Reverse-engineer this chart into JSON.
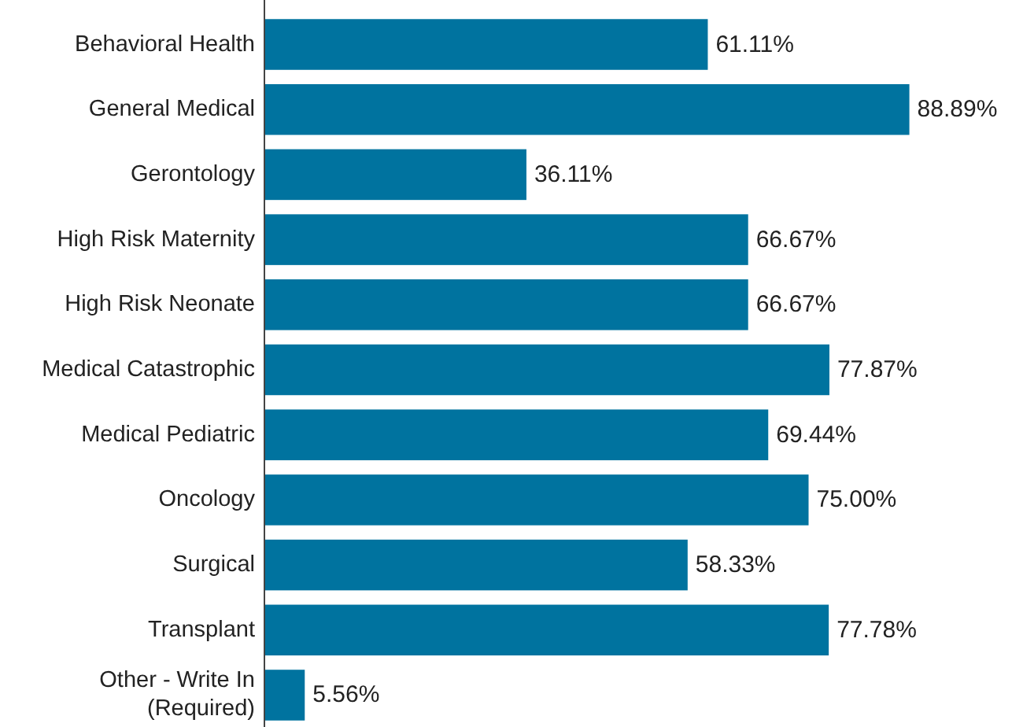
{
  "chart_data": {
    "type": "bar",
    "orientation": "horizontal",
    "categories": [
      "Behavioral Health",
      "General Medical",
      "Gerontology",
      "High Risk Maternity",
      "High Risk Neonate",
      "Medical Catastrophic",
      "Medical Pediatric",
      "Oncology",
      "Surgical",
      "Transplant",
      "Other - Write In (Required)"
    ],
    "values": [
      61.11,
      88.89,
      36.11,
      66.67,
      66.67,
      77.87,
      69.44,
      75.0,
      58.33,
      77.78,
      5.56
    ],
    "value_labels": [
      "61.11%",
      "88.89%",
      "36.11%",
      "66.67%",
      "66.67%",
      "77.87%",
      "69.44%",
      "75.00%",
      "58.33%",
      "77.78%",
      "5.56%"
    ],
    "color": "#00739f",
    "tick_labels": "y"
  }
}
